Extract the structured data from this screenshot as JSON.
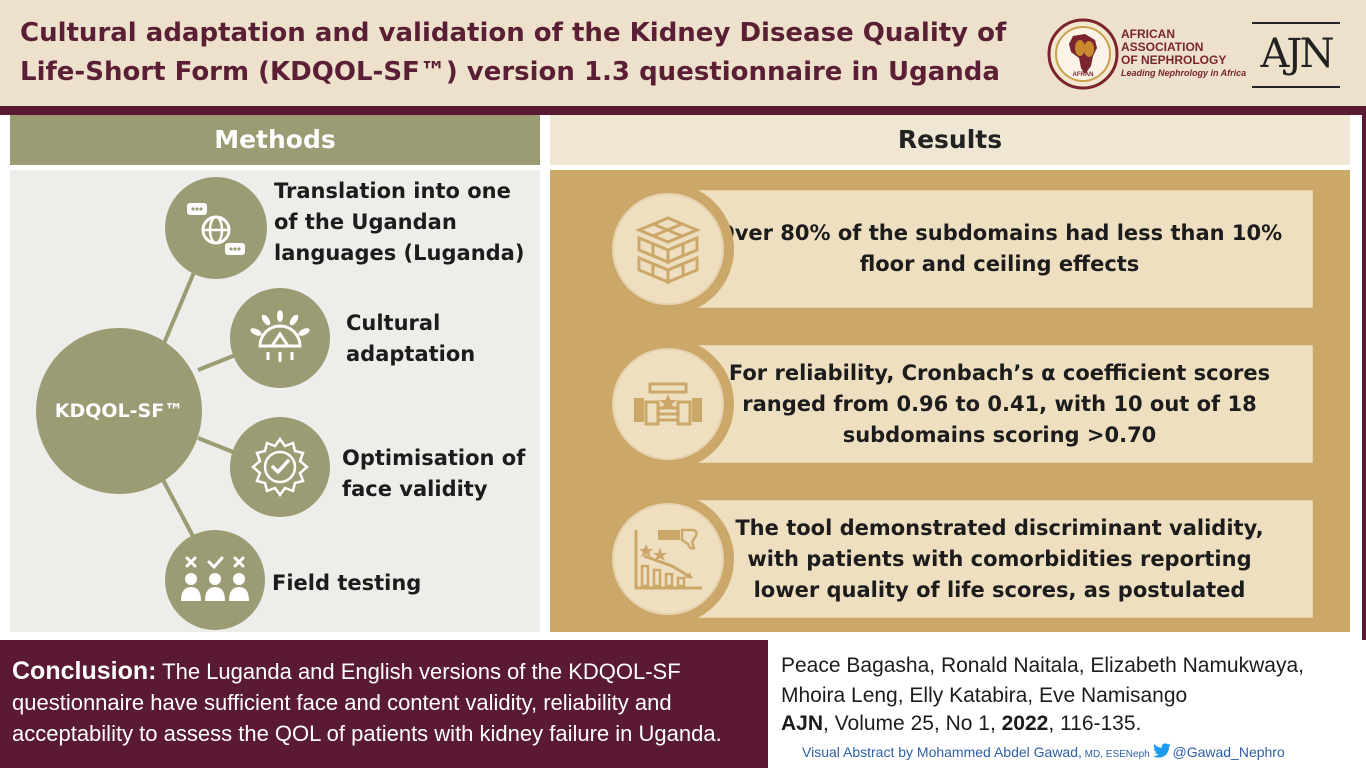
{
  "header": {
    "title": "Cultural adaptation and validation of the Kidney Disease Quality of Life-Short Form (KDQOL-SF™) version 1.3 questionnaire in Uganda",
    "afran": {
      "badge": "AFRAN",
      "name_lines": [
        "AFRICAN",
        "ASSOCIATION",
        "OF NEPHROLOGY"
      ],
      "tagline": "Leading Nephrology in Africa"
    },
    "ajn_logo": "AJN"
  },
  "methods": {
    "heading": "Methods",
    "hub_label": "KDQOL-SF™",
    "steps": [
      {
        "label": "Translation into one of the Ugandan languages (Luganda)",
        "icon": "translation-globe-icon"
      },
      {
        "label": "Cultural adaptation",
        "icon": "cultural-sun-icon"
      },
      {
        "label": "Optimisation of face validity",
        "icon": "validity-check-badge-icon"
      },
      {
        "label": "Field testing",
        "icon": "field-testing-people-icon"
      }
    ]
  },
  "results": {
    "heading": "Results",
    "items": [
      {
        "text": "Over 80% of the subdomains had less than 10% floor and ceiling effects",
        "icon": "floor-ceiling-grid-icon"
      },
      {
        "text": "For reliability, Cronbach’s α coefficient scores ranged from 0.96 to 0.41, with 10 out of 18 subdomains scoring >0.70",
        "icon": "reliability-handshake-icon"
      },
      {
        "text": "The tool demonstrated discriminant validity, with patients with comorbidities reporting lower quality of life scores, as postulated",
        "icon": "declining-chart-thumbs-down-icon"
      }
    ]
  },
  "conclusion": {
    "label": "Conclusion:",
    "text": "The Luganda and English versions of the KDQOL-SF questionnaire have sufficient face and content validity, reliability and acceptability to assess the QOL of patients with kidney failure in Uganda."
  },
  "citation": {
    "authors": "Peace Bagasha, Ronald Naitala, Elizabeth Namukwaya, Mhoira Leng, Elly Katabira, Eve Namisango",
    "journal": "AJN",
    "volume": ", Volume 25, No 1, ",
    "year": "2022",
    "pages": ", 116-135.",
    "credit_prefix": "Visual Abstract by Mohammed Abdel Gawad,",
    "credit_degrees": " MD, ESENeph ",
    "handle": "@Gawad_Nephro"
  },
  "colors": {
    "maroon": "#5b1a34",
    "olive": "#9b9b74",
    "tan": "#cba86a",
    "cream": "#efdfc1",
    "beige": "#eee1cc"
  }
}
